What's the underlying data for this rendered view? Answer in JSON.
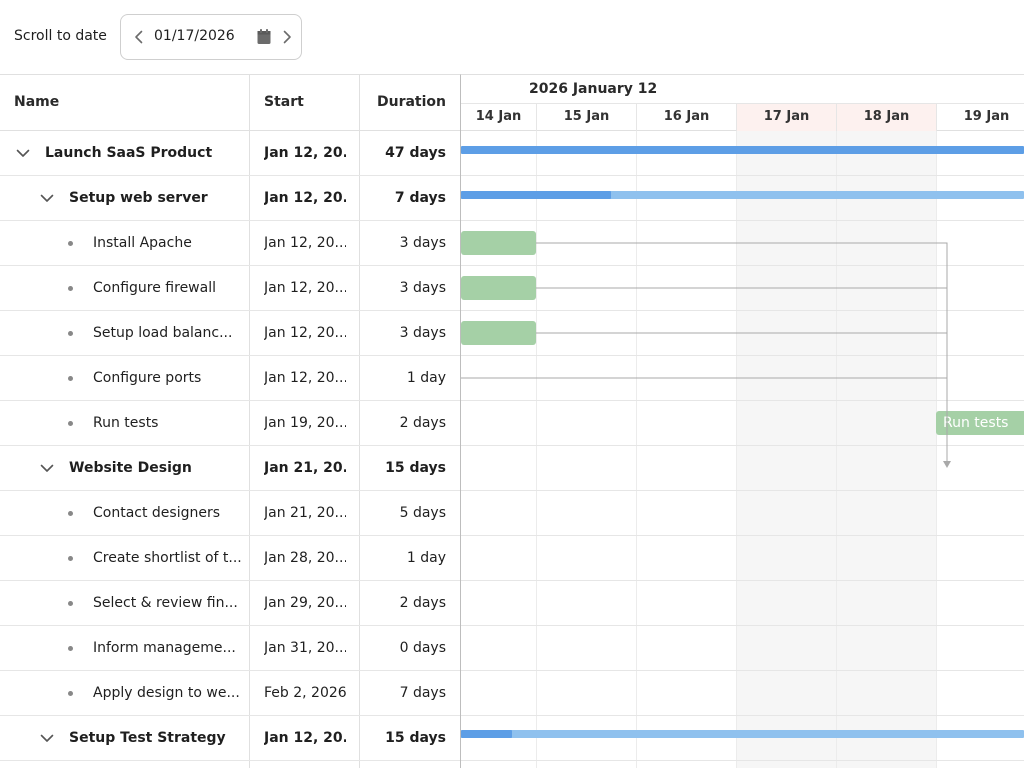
{
  "toolbar": {
    "scroll_label": "Scroll to date",
    "date_value": "01/17/2026"
  },
  "grid": {
    "columns": {
      "name": "Name",
      "start": "Start",
      "duration": "Duration"
    },
    "rows": [
      {
        "name": "Launch SaaS Product",
        "start": "Jan 12, 20...",
        "duration": "47 days",
        "level": 0,
        "type": "group"
      },
      {
        "name": "Setup web server",
        "start": "Jan 12, 20...",
        "duration": "7 days",
        "level": 1,
        "type": "group"
      },
      {
        "name": "Install Apache",
        "start": "Jan 12, 20...",
        "duration": "3 days",
        "level": 2,
        "type": "task"
      },
      {
        "name": "Configure firewall",
        "start": "Jan 12, 20...",
        "duration": "3 days",
        "level": 2,
        "type": "task"
      },
      {
        "name": "Setup load balanc...",
        "start": "Jan 12, 20...",
        "duration": "3 days",
        "level": 2,
        "type": "task"
      },
      {
        "name": "Configure ports",
        "start": "Jan 12, 20...",
        "duration": "1 day",
        "level": 2,
        "type": "task"
      },
      {
        "name": "Run tests",
        "start": "Jan 19, 20...",
        "duration": "2 days",
        "level": 2,
        "type": "task"
      },
      {
        "name": "Website Design",
        "start": "Jan 21, 20...",
        "duration": "15 days",
        "level": 1,
        "type": "group"
      },
      {
        "name": "Contact designers",
        "start": "Jan 21, 20...",
        "duration": "5 days",
        "level": 2,
        "type": "task"
      },
      {
        "name": "Create shortlist of t...",
        "start": "Jan 28, 20...",
        "duration": "1 day",
        "level": 2,
        "type": "task"
      },
      {
        "name": "Select & review fin...",
        "start": "Jan 29, 20...",
        "duration": "2 days",
        "level": 2,
        "type": "task"
      },
      {
        "name": "Inform manageme...",
        "start": "Jan 31, 20...",
        "duration": "0 days",
        "level": 2,
        "type": "task"
      },
      {
        "name": "Apply design to we...",
        "start": "Feb 2, 2026",
        "duration": "7 days",
        "level": 2,
        "type": "task"
      },
      {
        "name": "Setup Test Strategy",
        "start": "Jan 12, 20...",
        "duration": "15 days",
        "level": 1,
        "type": "group"
      }
    ]
  },
  "timeline": {
    "month_label": "2026 January 12",
    "days": [
      {
        "label": "14 Jan",
        "weekend": false
      },
      {
        "label": "15 Jan",
        "weekend": false
      },
      {
        "label": "16 Jan",
        "weekend": false
      },
      {
        "label": "17 Jan",
        "weekend": true
      },
      {
        "label": "18 Jan",
        "weekend": true
      },
      {
        "label": "19 Jan",
        "weekend": false
      }
    ],
    "run_tests_label": "Run tests"
  },
  "colors": {
    "summary_bar": "#8fc1ee",
    "summary_progress": "#5d9ee6",
    "task_bar": "#a5d0a6",
    "weekend_header": "#fdf1ef",
    "weekend_shade": "#f6f6f6"
  }
}
